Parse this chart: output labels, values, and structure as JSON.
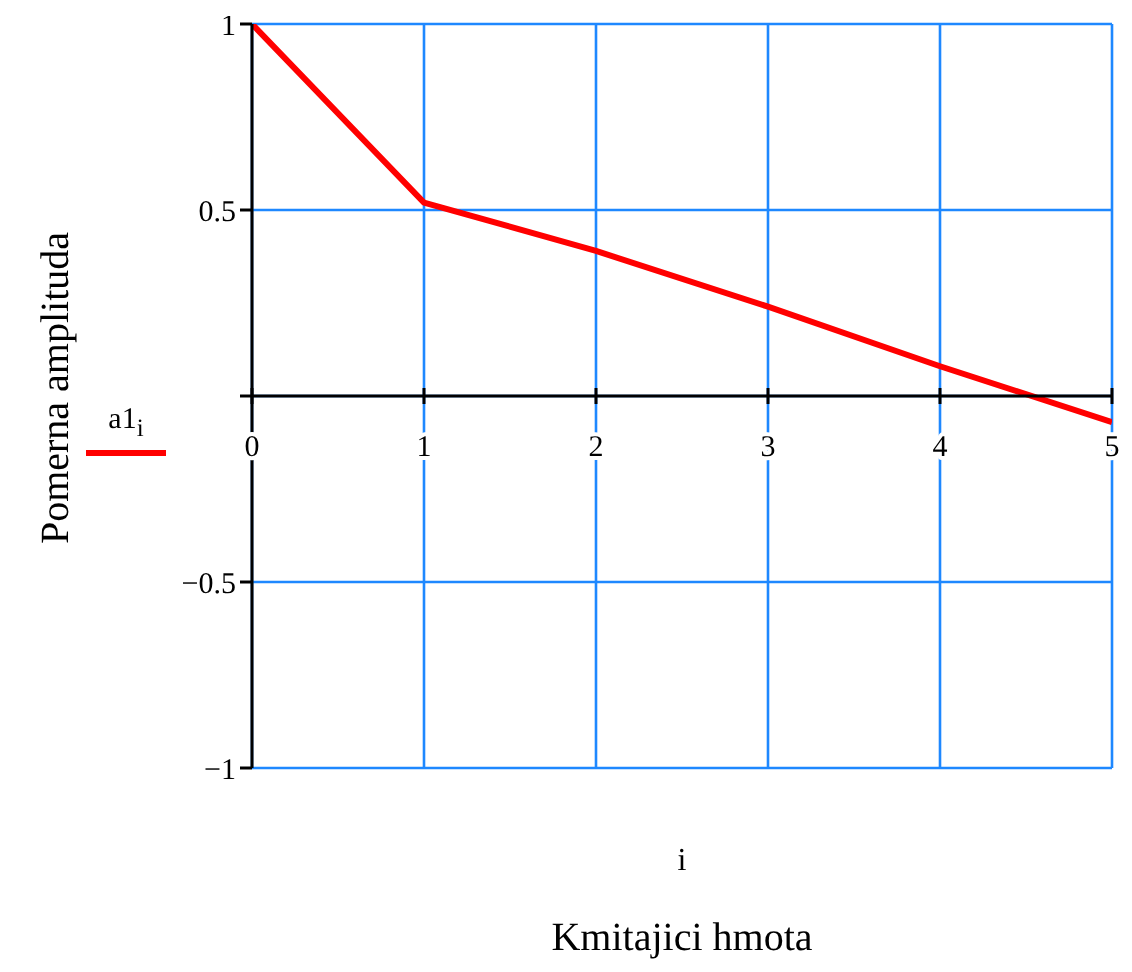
{
  "chart_data": {
    "type": "line",
    "xlabel": "Kmitajici hmota",
    "ylabel": "Pomerna amplituda",
    "annotations": [
      "i"
    ],
    "x": [
      0,
      1,
      2,
      3,
      4,
      5
    ],
    "series": [
      {
        "name": "a1$_{i}$",
        "color": "#ff0000",
        "values": [
          1,
          0.52,
          0.39,
          0.24,
          0.08,
          -0.07
        ]
      }
    ],
    "xlim": [
      0,
      5
    ],
    "ylim": [
      -1,
      1
    ],
    "xticks": [
      0,
      1,
      2,
      3,
      4,
      5
    ],
    "yticks": [
      {
        "value": -1,
        "label": "−1"
      },
      {
        "value": -0.5,
        "label": "−0.5"
      },
      {
        "value": 0,
        "label": null
      },
      0.5,
      1
    ],
    "grid": true,
    "legend": "left",
    "marker": "none",
    "line_style": "solid"
  }
}
